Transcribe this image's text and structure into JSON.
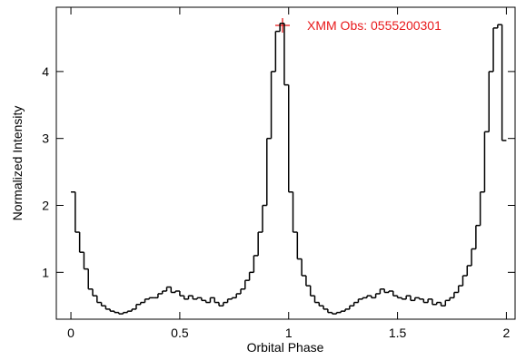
{
  "chart_data": {
    "type": "histogram",
    "xlabel": "Orbital Phase",
    "ylabel": "Normalized Intensity",
    "annotation": "XMM Obs: 0555200301",
    "annotation_color": "#e8191b",
    "color": "#000000",
    "bins": [
      0,
      0.02,
      0.04,
      0.06,
      0.08,
      0.1,
      0.12,
      0.14,
      0.16,
      0.18,
      0.2,
      0.22,
      0.24,
      0.26,
      0.28,
      0.3,
      0.32,
      0.34,
      0.36,
      0.38,
      0.4,
      0.42,
      0.44,
      0.46,
      0.48,
      0.5,
      0.52,
      0.54,
      0.56,
      0.58,
      0.6,
      0.62,
      0.64,
      0.66,
      0.68,
      0.7,
      0.72,
      0.74,
      0.76,
      0.78,
      0.8,
      0.82,
      0.84,
      0.86,
      0.88,
      0.9,
      0.92,
      0.94,
      0.96,
      0.98,
      1,
      1.02,
      1.04,
      1.06,
      1.08,
      1.1,
      1.12,
      1.14,
      1.16,
      1.18,
      1.2,
      1.22,
      1.24,
      1.26,
      1.28,
      1.3,
      1.32,
      1.34,
      1.36,
      1.38,
      1.4,
      1.42,
      1.44,
      1.46,
      1.48,
      1.5,
      1.52,
      1.54,
      1.56,
      1.58,
      1.6,
      1.62,
      1.64,
      1.66,
      1.68,
      1.7,
      1.72,
      1.74,
      1.76,
      1.78,
      1.8,
      1.82,
      1.84,
      1.86,
      1.88,
      1.9,
      1.92,
      1.94,
      1.96,
      1.98,
      2
    ],
    "values": [
      2.2,
      1.6,
      1.3,
      1.05,
      0.75,
      0.65,
      0.55,
      0.5,
      0.45,
      0.42,
      0.4,
      0.38,
      0.4,
      0.42,
      0.45,
      0.52,
      0.55,
      0.6,
      0.62,
      0.62,
      0.68,
      0.72,
      0.78,
      0.7,
      0.72,
      0.65,
      0.6,
      0.65,
      0.6,
      0.62,
      0.58,
      0.55,
      0.62,
      0.55,
      0.5,
      0.55,
      0.6,
      0.62,
      0.68,
      0.75,
      0.88,
      1.0,
      1.25,
      1.6,
      2.0,
      3.0,
      4.0,
      4.6,
      4.72,
      3.8,
      2.2,
      1.6,
      1.2,
      0.95,
      0.8,
      0.65,
      0.55,
      0.5,
      0.45,
      0.4,
      0.38,
      0.4,
      0.42,
      0.45,
      0.5,
      0.55,
      0.6,
      0.62,
      0.65,
      0.62,
      0.68,
      0.75,
      0.7,
      0.72,
      0.65,
      0.62,
      0.6,
      0.65,
      0.58,
      0.62,
      0.6,
      0.55,
      0.6,
      0.52,
      0.55,
      0.5,
      0.58,
      0.62,
      0.7,
      0.8,
      0.95,
      1.1,
      1.35,
      1.7,
      2.2,
      3.1,
      4.0,
      4.65,
      4.7,
      2.97
    ],
    "xlim": [
      -0.067,
      2.04
    ],
    "ylim": [
      0.3,
      4.96
    ],
    "xticks": [
      0,
      0.5,
      1,
      1.5,
      2
    ],
    "yticks": [
      1,
      2,
      3,
      4
    ]
  }
}
